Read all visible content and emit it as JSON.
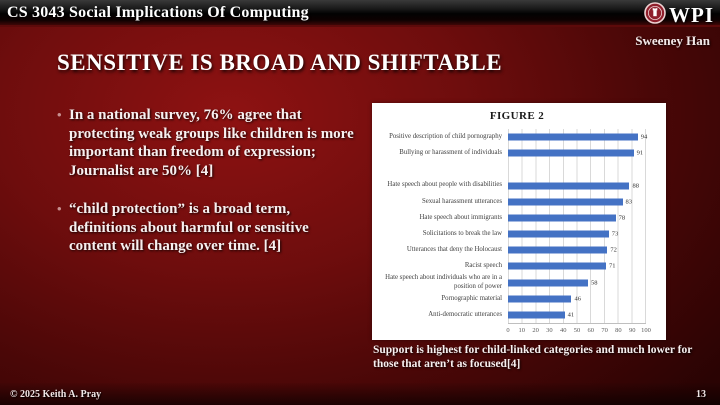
{
  "header": {
    "course_title": "CS 3043 Social Implications Of Computing",
    "logo_text": "WPI",
    "logo_icon": "wpi-seal-icon"
  },
  "author": "Sweeney Han",
  "slide": {
    "title": "SENSITIVE IS BROAD AND SHIFTABLE"
  },
  "bullets": [
    "In a national survey, 76% agree that protecting weak groups like children is more important than freedom of expression; Journalist are 50% [4]",
    "“child protection” is a broad term, definitions about harmful or sensitive content will change over time. [4]"
  ],
  "chart_data": {
    "type": "bar",
    "orientation": "horizontal",
    "title": "FIGURE 2",
    "categories": [
      "Positive description of child pornography",
      "Bullying or harassment of individuals",
      "",
      "Hate speech about people with disabilities",
      "Sexual harassment utterances",
      "Hate speech about immigrants",
      "Solicitations to break the law",
      "Utterances that deny the Holocaust",
      "Racist speech",
      "Hate speech about individuals who are in a position of power",
      "Pornographic material",
      "Anti-democratic utterances"
    ],
    "values": [
      94,
      91,
      null,
      88,
      83,
      78,
      73,
      72,
      71,
      58,
      46,
      41
    ],
    "xlim": [
      0,
      100
    ],
    "xticks": [
      0,
      10,
      20,
      30,
      40,
      50,
      60,
      70,
      80,
      90,
      100
    ],
    "bar_color": "#4472C4",
    "grid": true,
    "legend": "none"
  },
  "caption": "Support is highest for child-linked categories and much lower for those that aren’t as focused[4]",
  "footer": {
    "copyright": "© 2025 Keith A. Pray",
    "page_number": "13"
  }
}
